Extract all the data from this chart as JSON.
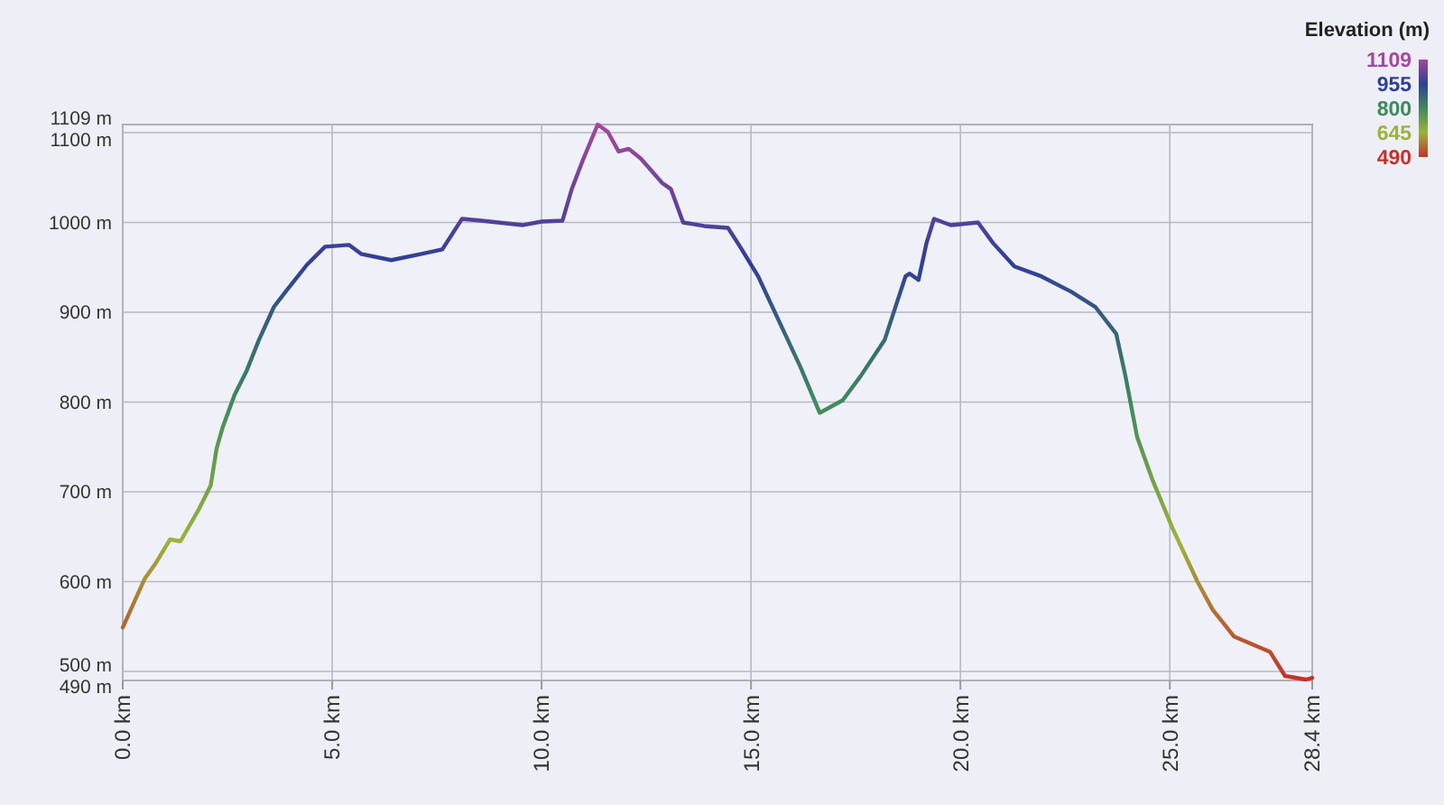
{
  "chart_data": {
    "type": "line",
    "clabel": "Elevation (m)",
    "clim": [
      490,
      1109
    ],
    "cticks": [
      1109,
      955,
      800,
      645,
      490
    ],
    "x": [
      0,
      0.52,
      0.78,
      1.13,
      1.38,
      1.81,
      2.1,
      2.24,
      2.38,
      2.67,
      2.96,
      3.25,
      3.61,
      3.89,
      4.4,
      4.83,
      5.4,
      5.69,
      6.41,
      7.13,
      7.63,
      8.1,
      8.56,
      9.56,
      10.0,
      10.5,
      10.72,
      11.0,
      11.34,
      11.58,
      11.84,
      12.08,
      12.37,
      12.88,
      13.09,
      13.38,
      13.88,
      14.45,
      14.74,
      15.17,
      15.75,
      16.18,
      16.64,
      17.19,
      17.62,
      18.19,
      18.69,
      18.79,
      19.0,
      19.19,
      19.37,
      19.77,
      20.42,
      20.78,
      21.29,
      21.93,
      22.64,
      23.22,
      23.72,
      23.94,
      24.22,
      24.58,
      25.06,
      25.66,
      26.02,
      26.53,
      27.39,
      27.75,
      28.25,
      28.4
    ],
    "series": [
      {
        "values": [
          549,
          603,
          620,
          647,
          645,
          680,
          707,
          748,
          771,
          808,
          835,
          869,
          906,
          923,
          953,
          973,
          975,
          965,
          958,
          965,
          970,
          1004,
          1002,
          997,
          1001,
          1002,
          1037,
          1071,
          1109,
          1101,
          1079,
          1082,
          1071,
          1044,
          1037,
          1000,
          996,
          994,
          973,
          940,
          882,
          839,
          788,
          802,
          829,
          869,
          940,
          943,
          936,
          977,
          1004,
          997,
          1000,
          977,
          951,
          940,
          923,
          906,
          876,
          829,
          761,
          714,
          660,
          600,
          569,
          539,
          522,
          495,
          491,
          493
        ]
      }
    ],
    "xlim": [
      0,
      28.4
    ],
    "ylim": [
      490,
      1109
    ],
    "xticks": [
      {
        "value": 0,
        "label": "0.0 km"
      },
      {
        "value": 5,
        "label": "5.0 km"
      },
      {
        "value": 10,
        "label": "10.0 km"
      },
      {
        "value": 15,
        "label": "15.0 km"
      },
      {
        "value": 20,
        "label": "20.0 km"
      },
      {
        "value": 25,
        "label": "25.0 km"
      },
      {
        "value": 28.4,
        "label": "28.4 km"
      }
    ],
    "yticks": [
      {
        "value": 490,
        "label": "490 m"
      },
      {
        "value": 500,
        "label": "500 m"
      },
      {
        "value": 600,
        "label": "600 m"
      },
      {
        "value": 700,
        "label": "700 m"
      },
      {
        "value": 800,
        "label": "800 m"
      },
      {
        "value": 900,
        "label": "900 m"
      },
      {
        "value": 1000,
        "label": "1000 m"
      },
      {
        "value": 1100,
        "label": "1100 m"
      },
      {
        "value": 1109,
        "label": "1109 m"
      }
    ],
    "grid": true,
    "line_style": "solid",
    "marker": "none"
  }
}
